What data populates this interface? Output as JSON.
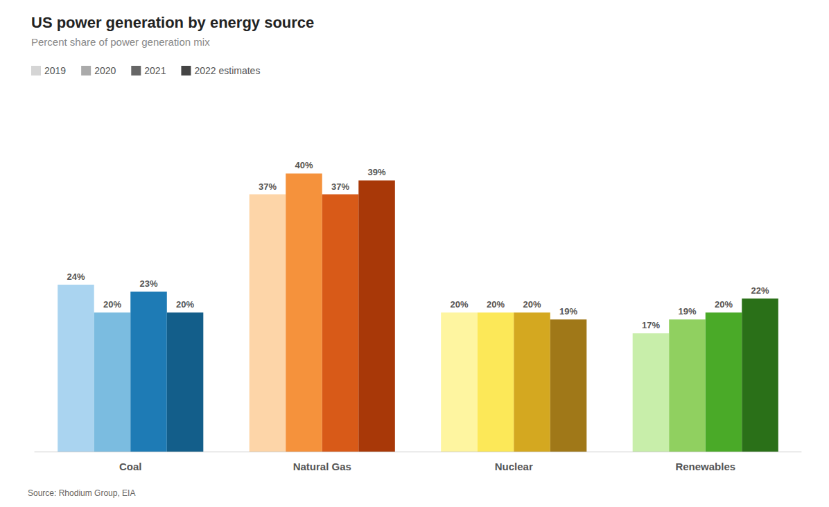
{
  "chart_data": {
    "type": "bar",
    "title": "US power generation by energy source",
    "subtitle": "Percent share of power generation mix",
    "annotations": [
      "Source: Rhodium Group, EIA"
    ],
    "categories": [
      "Coal",
      "Natural Gas",
      "Nuclear",
      "Renewables"
    ],
    "series": [
      {
        "name": "2019",
        "color": "#d5d5d5",
        "colors": [
          "#aad4f0",
          "#fdd5a8",
          "#fef5a0",
          "#c8eeaa"
        ],
        "values": [
          24,
          37,
          20,
          17
        ],
        "value_labels": [
          "24%",
          "37%",
          "20%",
          "17%"
        ]
      },
      {
        "name": "2020",
        "color": "#aaaaaa",
        "colors": [
          "#7bbce0",
          "#f5923c",
          "#fce858",
          "#90d060"
        ],
        "values": [
          20,
          40,
          20,
          19
        ],
        "value_labels": [
          "20%",
          "40%",
          "20%",
          "19%"
        ]
      },
      {
        "name": "2021",
        "color": "#666666",
        "colors": [
          "#1e7bb5",
          "#d85a18",
          "#d4a820",
          "#4aaa28"
        ],
        "values": [
          23,
          37,
          20,
          20
        ],
        "value_labels": [
          "23%",
          "37%",
          "20%",
          "20%"
        ]
      },
      {
        "name": "2022 estimates",
        "color": "#444444",
        "colors": [
          "#135e8a",
          "#a83808",
          "#a07818",
          "#2a7018"
        ],
        "values": [
          20,
          39,
          19,
          22
        ],
        "value_labels": [
          "20%",
          "39%",
          "19%",
          "22%"
        ]
      }
    ],
    "ylim": [
      0,
      50
    ],
    "grid": false,
    "legend": "top left",
    "data_labels": true,
    "tick_labels": "x"
  }
}
